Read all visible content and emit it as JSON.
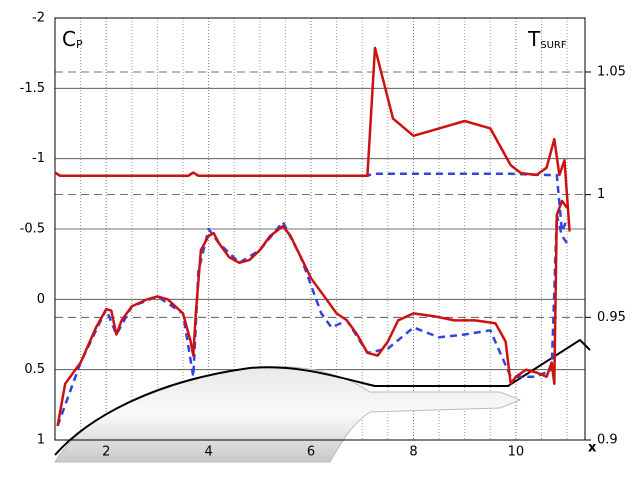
{
  "chart_data": {
    "type": "line",
    "ylabel": "C",
    "ylabel_sub": "P",
    "y2label": "T",
    "y2label_sub": "SURF",
    "xlabel": "x",
    "xlim": [
      1,
      11.35
    ],
    "xticks": [
      2,
      4,
      6,
      8,
      10
    ],
    "xminorticks": [
      1.5,
      2.5,
      3,
      3.5,
      4.5,
      5,
      5.5,
      6.5,
      7,
      7.5,
      8.5,
      9,
      9.5,
      10.5,
      11
    ],
    "ylim": [
      -2,
      1
    ],
    "yticks": [
      -2,
      -1.5,
      -1,
      -0.5,
      0,
      0.5,
      1
    ],
    "y_inverted": true,
    "y2lim": [
      0.9,
      1.072
    ],
    "y2ticks": [
      0.9,
      0.95,
      1,
      1.05
    ],
    "series": [
      {
        "color": "#3344dd",
        "dash": true,
        "axis": "y",
        "x": [
          1.05,
          1.5,
          2.0,
          2.2,
          2.5,
          3.0,
          3.5,
          3.7,
          3.8,
          4.0,
          4.2,
          4.6,
          5.0,
          5.45,
          5.8,
          6.2,
          6.4,
          6.7,
          7.1,
          7.5,
          8.0,
          8.5,
          9.0,
          9.5,
          9.9,
          10.4,
          10.7,
          10.8,
          10.9,
          11.0
        ],
        "values": [
          0.9,
          0.45,
          0.07,
          0.25,
          0.05,
          -0.02,
          0.1,
          0.55,
          -0.2,
          -0.5,
          -0.4,
          -0.26,
          -0.35,
          -0.55,
          -0.3,
          0.1,
          0.2,
          0.15,
          0.38,
          0.35,
          0.2,
          0.27,
          0.25,
          0.22,
          0.55,
          0.55,
          0.5,
          -0.6,
          -0.45,
          -0.4
        ]
      },
      {
        "color": "#cc1111",
        "dash": false,
        "axis": "y",
        "x": [
          1.05,
          1.2,
          1.5,
          1.8,
          2.0,
          2.1,
          2.2,
          2.3,
          2.5,
          2.8,
          3.0,
          3.2,
          3.5,
          3.65,
          3.7,
          3.75,
          3.85,
          4.0,
          4.1,
          4.2,
          4.4,
          4.6,
          4.8,
          5.0,
          5.2,
          5.45,
          5.6,
          5.8,
          6.0,
          6.3,
          6.5,
          6.7,
          6.9,
          7.1,
          7.3,
          7.5,
          7.7,
          8.0,
          8.4,
          8.8,
          9.2,
          9.6,
          9.8,
          9.9,
          10.0,
          10.2,
          10.4,
          10.6,
          10.7,
          10.75,
          10.8,
          10.9,
          11.0
        ],
        "values": [
          0.9,
          0.6,
          0.45,
          0.2,
          0.07,
          0.08,
          0.25,
          0.15,
          0.05,
          0.0,
          -0.02,
          0.0,
          0.1,
          0.3,
          0.4,
          0.1,
          -0.35,
          -0.45,
          -0.47,
          -0.4,
          -0.3,
          -0.26,
          -0.28,
          -0.35,
          -0.45,
          -0.52,
          -0.45,
          -0.3,
          -0.15,
          0.0,
          0.1,
          0.15,
          0.25,
          0.38,
          0.4,
          0.3,
          0.15,
          0.1,
          0.12,
          0.15,
          0.15,
          0.17,
          0.3,
          0.6,
          0.55,
          0.5,
          0.52,
          0.55,
          0.45,
          0.6,
          -0.6,
          -0.7,
          -0.65
        ]
      },
      {
        "color": "#3344dd",
        "dash": true,
        "axis": "y2",
        "x": [
          1.0,
          1.1,
          3.6,
          3.7,
          3.8,
          7.1,
          7.2,
          9.9,
          10.6,
          10.8,
          10.9,
          11.0
        ],
        "values": [
          1.009,
          1.0077,
          1.0077,
          1.009,
          1.0077,
          1.0077,
          1.0085,
          1.0085,
          1.008,
          1.008,
          0.985,
          0.99
        ]
      },
      {
        "color": "#cc1111",
        "dash": false,
        "axis": "y2",
        "x": [
          1.0,
          1.1,
          3.6,
          3.7,
          3.8,
          5.0,
          7.1,
          7.25,
          7.6,
          8.0,
          8.5,
          9.0,
          9.5,
          9.9,
          10.1,
          10.4,
          10.6,
          10.75,
          10.85,
          10.95,
          11.05
        ],
        "values": [
          1.009,
          1.0077,
          1.0077,
          1.009,
          1.0077,
          1.0077,
          1.0077,
          1.0598,
          1.031,
          1.024,
          1.027,
          1.03,
          1.027,
          1.012,
          1.0088,
          1.008,
          1.011,
          1.0226,
          1.008,
          1.014,
          0.985
        ]
      }
    ]
  }
}
